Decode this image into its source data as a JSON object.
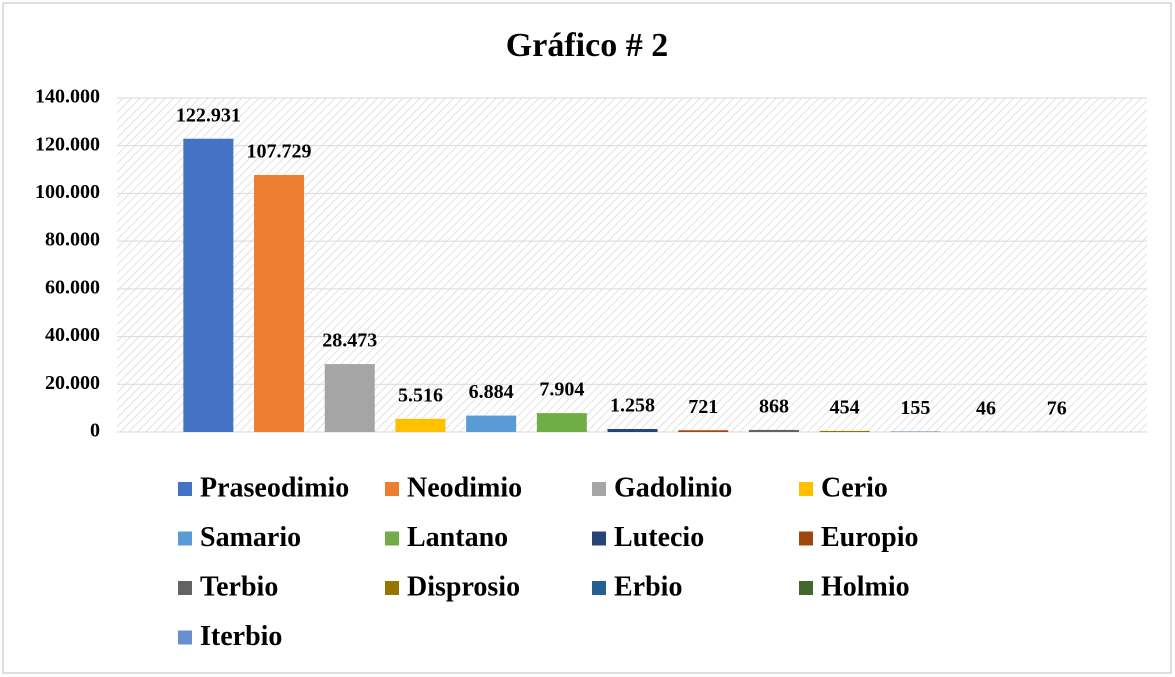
{
  "chart_data": {
    "type": "bar",
    "title": "Gráfico # 2",
    "categories": [
      "Praseodimio",
      "Neodimio",
      "Gadolinio",
      "Cerio",
      "Samario",
      "Lantano",
      "Lutecio",
      "Europio",
      "Terbio",
      "Disprosio",
      "Erbio",
      "Holmio",
      "Iterbio"
    ],
    "values": [
      122931,
      107729,
      28473,
      5516,
      6884,
      7904,
      1258,
      721,
      868,
      454,
      155,
      46,
      76
    ],
    "value_labels": [
      "122.931",
      "107.729",
      "28.473",
      "5.516",
      "6.884",
      "7.904",
      "1.258",
      "721",
      "868",
      "454",
      "155",
      "46",
      "76"
    ],
    "colors": [
      "#4472c4",
      "#ed7d31",
      "#a5a5a5",
      "#ffc000",
      "#5b9bd5",
      "#70ad47",
      "#264478",
      "#9e480e",
      "#636363",
      "#997300",
      "#255e91",
      "#43682b",
      "#698ed0"
    ],
    "ylim": [
      0,
      140000
    ],
    "yticks": [
      0,
      {
        "value": 20000,
        "label": "20.000"
      },
      {
        "value": 40000,
        "label": "40.000"
      },
      {
        "value": 60000,
        "label": "60.000"
      },
      {
        "value": 80000,
        "label": "80.000"
      },
      {
        "value": 100000,
        "label": "100.000"
      },
      {
        "value": 120000,
        "label": "120.000"
      },
      {
        "value": 140000,
        "label": "140.000"
      }
    ],
    "grid": true,
    "legend": "bottom"
  }
}
